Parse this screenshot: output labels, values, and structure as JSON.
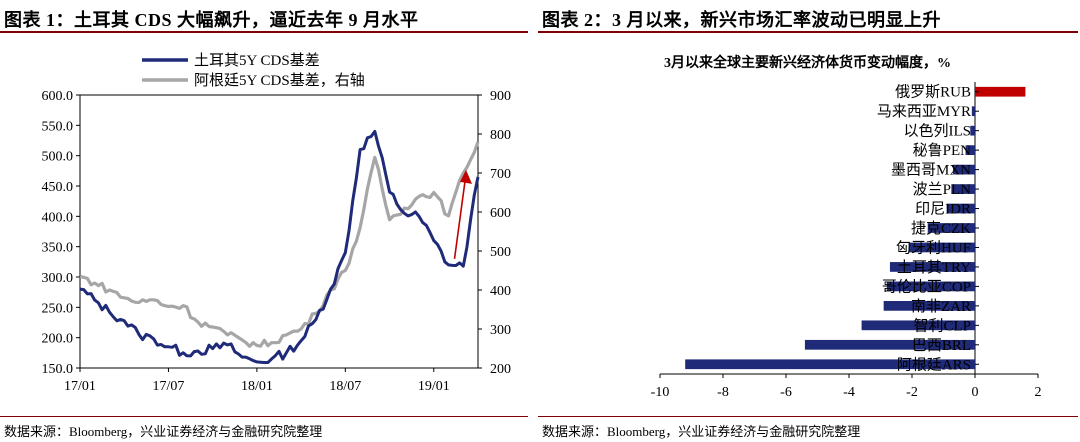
{
  "chart_data": [
    {
      "type": "line",
      "title": "图表 1：土耳其 CDS 大幅飙升，逼近去年 9 月水平",
      "x_tick_labels": [
        "17/01",
        "17/07",
        "18/01",
        "18/07",
        "19/01"
      ],
      "x_range": [
        "2017-01",
        "2019-04"
      ],
      "y_ticks": [
        "150.0",
        "200.0",
        "250.0",
        "300.0",
        "350.0",
        "400.0",
        "450.0",
        "500.0",
        "550.0",
        "600.0"
      ],
      "ylim": [
        150,
        600
      ],
      "y2_ticks": [
        "200",
        "300",
        "400",
        "500",
        "600",
        "700",
        "800",
        "900"
      ],
      "y2lim": [
        200,
        900
      ],
      "legend_position": "top-left",
      "grid": false,
      "annotation": "red upward arrow near the latest Turkey CDS values",
      "series": [
        {
          "name": "土耳其5Y CDS基差",
          "axis": "left",
          "color": "#1f2a78",
          "points": [
            [
              "2017-01",
              280
            ],
            [
              "2017-02",
              262
            ],
            [
              "2017-03",
              242
            ],
            [
              "2017-04",
              228
            ],
            [
              "2017-05",
              205
            ],
            [
              "2017-06",
              198
            ],
            [
              "2017-07",
              185
            ],
            [
              "2017-08",
              175
            ],
            [
              "2017-09",
              178
            ],
            [
              "2017-10",
              182
            ],
            [
              "2017-11",
              188
            ],
            [
              "2017-12",
              168
            ],
            [
              "2018-01",
              160
            ],
            [
              "2018-02",
              165
            ],
            [
              "2018-03",
              175
            ],
            [
              "2018-04",
              195
            ],
            [
              "2018-05",
              230
            ],
            [
              "2018-06",
              280
            ],
            [
              "2018-07",
              340
            ],
            [
              "2018-08",
              510
            ],
            [
              "2018-09",
              540
            ],
            [
              "2018-10",
              440
            ],
            [
              "2018-11",
              405
            ],
            [
              "2018-12",
              400
            ],
            [
              "2019-01",
              360
            ],
            [
              "2019-02",
              320
            ],
            [
              "2019-03",
              318
            ],
            [
              "2019-04",
              465
            ]
          ]
        },
        {
          "name": "阿根廷5Y CDS基差，右轴",
          "axis": "right",
          "color": "#a6a6a6",
          "points": [
            [
              "2017-01",
              435
            ],
            [
              "2017-02",
              418
            ],
            [
              "2017-03",
              400
            ],
            [
              "2017-04",
              380
            ],
            [
              "2017-05",
              368
            ],
            [
              "2017-06",
              375
            ],
            [
              "2017-07",
              358
            ],
            [
              "2017-08",
              360
            ],
            [
              "2017-09",
              318
            ],
            [
              "2017-10",
              305
            ],
            [
              "2017-11",
              285
            ],
            [
              "2017-12",
              272
            ],
            [
              "2018-01",
              258
            ],
            [
              "2018-02",
              265
            ],
            [
              "2018-03",
              285
            ],
            [
              "2018-04",
              300
            ],
            [
              "2018-05",
              340
            ],
            [
              "2018-06",
              400
            ],
            [
              "2018-07",
              450
            ],
            [
              "2018-08",
              560
            ],
            [
              "2018-09",
              740
            ],
            [
              "2018-10",
              580
            ],
            [
              "2018-11",
              610
            ],
            [
              "2018-12",
              640
            ],
            [
              "2019-01",
              650
            ],
            [
              "2019-02",
              590
            ],
            [
              "2019-03",
              700
            ],
            [
              "2019-04",
              780
            ]
          ]
        }
      ]
    },
    {
      "type": "bar",
      "orientation": "horizontal",
      "title": "图表 2：3 月以来，新兴市场汇率波动已明显上升",
      "subtitle": "3月以来全球主要新兴经济体货币变动幅度，%",
      "categories": [
        "俄罗斯RUB",
        "马来西亚MYR",
        "以色列ILS",
        "秘鲁PEN",
        "墨西哥MXN",
        "波兰PLN",
        "印尼IDR",
        "捷克CZK",
        "匈牙利HUF",
        "土耳其TRY",
        "哥伦比亚COP",
        "南非ZAR",
        "智利CLP",
        "巴西BRL",
        "阿根廷ARS"
      ],
      "values": [
        1.6,
        -0.1,
        -0.15,
        -0.3,
        -0.7,
        -0.75,
        -0.9,
        -1.5,
        -2.1,
        -2.7,
        -2.8,
        -2.9,
        -3.6,
        -5.4,
        -9.2
      ],
      "colors": {
        "positive": "#c00000",
        "negative": "#1f2a78"
      },
      "x_ticks": [
        "-10",
        "-8",
        "-6",
        "-4",
        "-2",
        "0",
        "2"
      ],
      "xlim": [
        -10,
        2
      ]
    }
  ],
  "sources": {
    "left": "数据来源：Bloomberg，兴业证券经济与金融研究院整理",
    "right": "数据来源：Bloomberg，兴业证券经济与金融研究院整理"
  }
}
